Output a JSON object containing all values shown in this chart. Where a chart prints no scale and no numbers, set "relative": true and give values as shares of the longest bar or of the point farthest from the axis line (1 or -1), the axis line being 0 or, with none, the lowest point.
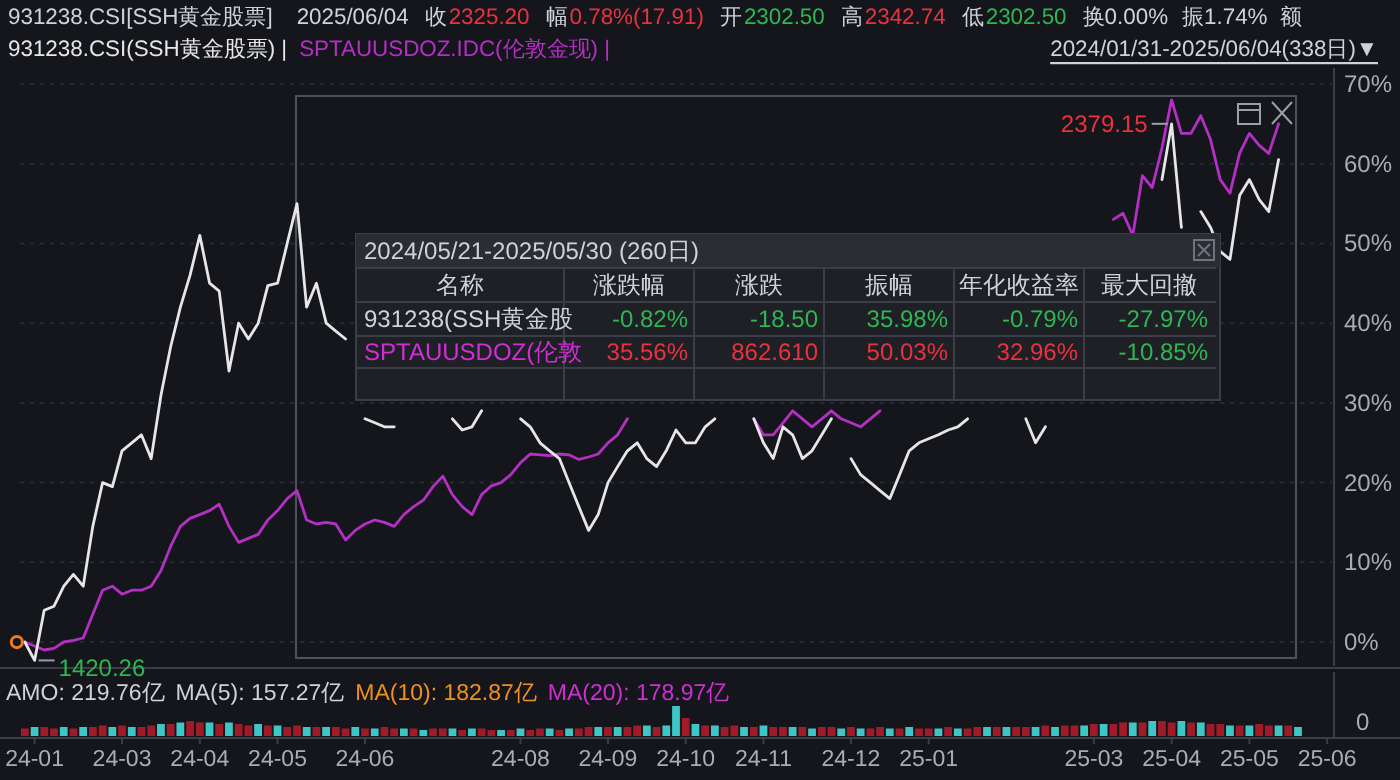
{
  "chart_data": [
    {
      "type": "line",
      "title": "931238.CSI[SSH黄金股票]",
      "legend": "top left",
      "grid": "y",
      "tick_labels": "y",
      "categories": [
        null,
        null,
        null,
        null,
        null,
        null,
        null,
        null,
        null,
        null,
        null,
        null,
        null,
        null,
        null,
        null,
        null,
        null,
        null,
        null,
        null,
        null,
        null,
        null,
        null,
        null,
        null,
        null,
        null,
        null,
        null,
        null,
        null,
        null,
        null,
        null,
        null,
        null,
        null,
        null,
        null,
        null,
        null,
        null,
        null,
        null,
        null,
        null,
        null,
        null,
        null,
        null,
        null,
        null,
        null,
        null,
        null,
        null,
        null,
        null,
        null,
        null,
        null,
        null,
        null,
        null,
        null,
        null,
        null,
        null,
        null,
        null,
        null,
        null,
        null,
        null,
        null,
        null,
        null,
        null,
        null,
        null,
        null,
        null,
        null,
        null,
        null,
        null,
        null,
        null,
        null,
        null,
        null,
        null,
        null,
        null,
        null,
        null,
        null,
        null,
        null,
        null,
        null,
        null,
        null,
        null,
        null,
        null,
        null,
        null,
        null,
        null,
        null,
        null,
        null,
        null,
        null,
        null,
        null,
        null,
        null,
        null,
        null,
        null,
        null,
        null,
        null,
        null,
        null,
        null,
        null,
        null,
        null,
        null,
        null
      ],
      "ylim": [
        -3,
        72
      ],
      "yticks": [
        {
          "value": 0,
          "label": "0%"
        },
        {
          "value": 10,
          "label": "10%"
        },
        {
          "value": 20,
          "label": "20%"
        },
        {
          "value": 30,
          "label": "30%"
        },
        {
          "value": 40,
          "label": "40%"
        },
        {
          "value": 50,
          "label": "50%"
        },
        {
          "value": 60,
          "label": "60%"
        },
        {
          "value": 70,
          "label": "70%"
        }
      ],
      "series": [
        {
          "name": "931238.CSI(SSH黄金股票) |",
          "color": "#e6e6e6",
          "values": [
            0,
            -2.3,
            4,
            4.5,
            7,
            8.5,
            7,
            14.5,
            20,
            19.5,
            24,
            25,
            26,
            23,
            31,
            37,
            42,
            46,
            51,
            45,
            44,
            34,
            40,
            38,
            40,
            44.7,
            45,
            50,
            55,
            42,
            45,
            40,
            39,
            38,
            null,
            28,
            27.5,
            27,
            27,
            null,
            null,
            null,
            null,
            null,
            28,
            26.6,
            27,
            29,
            null,
            null,
            null,
            28,
            27,
            25,
            24,
            23,
            20,
            17,
            14,
            16,
            20,
            22,
            24,
            25,
            23,
            22,
            24,
            26.6,
            25,
            25,
            27,
            28,
            null,
            null,
            null,
            28,
            25,
            23,
            27,
            26,
            23,
            24,
            26,
            28,
            null,
            23,
            21,
            20,
            19,
            18,
            21,
            24,
            25,
            25.5,
            26,
            26.6,
            27,
            28,
            null,
            null,
            null,
            null,
            null,
            28,
            25,
            27,
            null,
            null,
            null,
            null,
            null,
            null,
            null,
            null,
            null,
            null,
            null,
            58,
            65,
            52,
            null,
            54,
            52,
            49,
            48,
            56,
            58,
            55.5,
            54,
            60.5,
            null,
            null,
            null,
            null,
            null
          ]
        },
        {
          "name": "SPTAUUSDOZ.IDC(伦敦金现) |",
          "color": "#b42fc4",
          "values": [
            0,
            -0.5,
            -1,
            -0.8,
            0,
            0.2,
            0.5,
            3.5,
            6.5,
            7,
            6,
            6.5,
            6.5,
            7,
            9,
            12,
            14.5,
            15.5,
            16,
            16.5,
            17.3,
            14.5,
            12.5,
            13,
            13.5,
            15.3,
            16.5,
            18,
            19,
            15.3,
            14.8,
            15,
            14.8,
            12.8,
            14,
            14.8,
            15.3,
            15,
            14.5,
            16,
            17,
            17.8,
            19.5,
            20.8,
            18.5,
            17,
            16,
            18.5,
            19.6,
            20,
            21,
            22.5,
            23.6,
            23.5,
            23.4,
            23.6,
            23.5,
            22.9,
            23.2,
            23.6,
            25,
            26,
            28,
            null,
            null,
            null,
            null,
            null,
            null,
            null,
            null,
            null,
            null,
            null,
            null,
            28,
            26,
            26,
            27.5,
            29,
            28,
            27,
            28,
            29,
            28,
            27.5,
            27,
            28,
            29,
            null,
            null,
            null,
            null,
            null,
            null,
            null,
            null,
            null,
            null,
            null,
            null,
            null,
            null,
            null,
            null,
            null,
            null,
            null,
            null,
            null,
            null,
            null,
            53,
            53.8,
            51,
            58.5,
            57,
            62,
            68,
            63.8,
            63.8,
            66,
            63,
            58,
            56.3,
            61.3,
            63.8,
            62.3,
            61.3,
            65,
            null,
            null,
            null,
            null,
            null
          ]
        }
      ],
      "annotations": [
        "2025/06/04",
        "收",
        "2325.20",
        "幅",
        "0.78%(17.91)",
        "开",
        "2302.50",
        "高",
        "2342.74",
        "低",
        "2302.50",
        "换0.00%",
        "振1.74%",
        "额",
        "2024/01/31-2025/06/04(338日)▼",
        "2024/05/21-2025/05/30 (260日)",
        "名称",
        "涨跌幅",
        "涨跌",
        "振幅",
        "年化收益率",
        "最大回撤",
        "931238(SSH黄金股",
        "-0.82%",
        "-18.50",
        "35.98%",
        "-0.79%",
        "-27.97%",
        "SPTAUUSDOZ(伦敦",
        "35.56%",
        "862.610",
        "50.03%",
        "32.96%",
        "-10.85%",
        "1420.26",
        "2379.15"
      ]
    },
    {
      "type": "bar",
      "relative": true,
      "tick_labels": "x",
      "categories": [
        null,
        "24-01",
        null,
        null,
        null,
        null,
        null,
        null,
        null,
        null,
        "24-03",
        null,
        null,
        null,
        null,
        null,
        null,
        null,
        "24-04",
        null,
        null,
        null,
        null,
        null,
        null,
        null,
        "24-05",
        null,
        null,
        null,
        null,
        null,
        null,
        null,
        null,
        "24-06",
        null,
        null,
        null,
        null,
        null,
        null,
        null,
        null,
        null,
        null,
        null,
        null,
        null,
        null,
        null,
        "24-08",
        null,
        null,
        null,
        null,
        null,
        null,
        null,
        null,
        "24-09",
        null,
        null,
        null,
        null,
        null,
        null,
        null,
        "24-10",
        null,
        null,
        null,
        null,
        null,
        null,
        null,
        "24-11",
        null,
        null,
        null,
        null,
        null,
        null,
        null,
        null,
        "24-12",
        null,
        null,
        null,
        null,
        null,
        null,
        null,
        "25-01",
        null,
        null,
        null,
        null,
        null,
        null,
        null,
        null,
        null,
        null,
        null,
        null,
        null,
        null,
        null,
        null,
        "25-03",
        null,
        null,
        null,
        null,
        null,
        null,
        null,
        "25-04",
        null,
        null,
        null,
        null,
        null,
        null,
        null,
        "25-05",
        null,
        null,
        null,
        null,
        null,
        null,
        null,
        "25-06"
      ],
      "values": [
        0.25,
        0.3,
        0.3,
        0.25,
        0.3,
        0.25,
        0.3,
        0.3,
        0.35,
        0.3,
        0.35,
        0.3,
        0.3,
        0.35,
        0.4,
        0.4,
        0.45,
        0.5,
        0.45,
        0.45,
        0.4,
        0.45,
        0.4,
        0.35,
        0.4,
        0.35,
        0.35,
        0.3,
        0.35,
        0.3,
        0.3,
        0.3,
        0.3,
        0.25,
        0.3,
        0.25,
        0.25,
        0.3,
        0.25,
        0.25,
        0.25,
        0.2,
        0.25,
        0.25,
        0.25,
        0.2,
        0.25,
        0.25,
        0.2,
        0.2,
        0.2,
        0.25,
        0.2,
        0.25,
        0.25,
        0.2,
        0.25,
        0.25,
        0.3,
        0.3,
        0.3,
        0.3,
        0.3,
        0.35,
        0.35,
        0.3,
        0.35,
        1,
        0.6,
        0.4,
        0.35,
        0.35,
        0.3,
        0.35,
        0.3,
        0.3,
        0.35,
        0.3,
        0.3,
        0.3,
        0.3,
        0.25,
        0.3,
        0.3,
        0.25,
        0.3,
        0.25,
        0.25,
        0.3,
        0.25,
        0.25,
        0.3,
        0.25,
        0.25,
        0.25,
        0.3,
        0.25,
        0.25,
        0.3,
        0.3,
        0.3,
        0.3,
        0.3,
        0.3,
        0.3,
        0.35,
        0.3,
        0.35,
        0.35,
        0.35,
        0.4,
        0.4,
        0.4,
        0.45,
        0.45,
        0.45,
        0.5,
        0.5,
        0.45,
        0.5,
        0.45,
        0.45,
        0.4,
        0.4,
        0.35,
        0.35,
        0.35,
        0.4,
        0.35,
        0.35,
        0.35,
        0.3,
        null,
        null,
        null
      ],
      "colors": [
        "#a01a28",
        "#3ec6c6",
        "#a01a28",
        "#a01a28",
        "#3ec6c6",
        "#a01a28",
        "#3ec6c6",
        "#a01a28",
        "#a01a28",
        "#3ec6c6",
        "#a01a28",
        "#3ec6c6",
        "#a01a28",
        "#a01a28",
        "#3ec6c6",
        "#a01a28",
        "#3ec6c6",
        "#a01a28",
        "#a01a28",
        "#3ec6c6",
        "#a01a28",
        "#3ec6c6",
        "#a01a28",
        "#a01a28",
        "#3ec6c6",
        "#a01a28",
        "#3ec6c6",
        "#a01a28",
        "#a01a28",
        "#3ec6c6",
        "#a01a28",
        "#3ec6c6",
        "#a01a28",
        "#a01a28",
        "#3ec6c6",
        "#a01a28",
        "#3ec6c6",
        "#a01a28",
        "#a01a28",
        "#3ec6c6",
        "#a01a28",
        "#3ec6c6",
        "#a01a28",
        "#a01a28",
        "#3ec6c6",
        "#a01a28",
        "#3ec6c6",
        "#a01a28",
        "#a01a28",
        "#3ec6c6",
        "#a01a28",
        "#3ec6c6",
        "#a01a28",
        "#a01a28",
        "#3ec6c6",
        "#a01a28",
        "#3ec6c6",
        "#a01a28",
        "#a01a28",
        "#3ec6c6",
        "#a01a28",
        "#3ec6c6",
        "#a01a28",
        "#a01a28",
        "#3ec6c6",
        "#a01a28",
        "#3ec6c6",
        "#3ec6c6",
        "#a01a28",
        "#3ec6c6",
        "#a01a28",
        "#3ec6c6",
        "#a01a28",
        "#a01a28",
        "#3ec6c6",
        "#a01a28",
        "#3ec6c6",
        "#a01a28",
        "#a01a28",
        "#3ec6c6",
        "#a01a28",
        "#3ec6c6",
        "#a01a28",
        "#a01a28",
        "#3ec6c6",
        "#a01a28",
        "#3ec6c6",
        "#a01a28",
        "#a01a28",
        "#3ec6c6",
        "#a01a28",
        "#3ec6c6",
        "#a01a28",
        "#a01a28",
        "#3ec6c6",
        "#a01a28",
        "#3ec6c6",
        "#a01a28",
        "#a01a28",
        "#3ec6c6",
        "#a01a28",
        "#3ec6c6",
        "#a01a28",
        "#a01a28",
        "#3ec6c6",
        "#a01a28",
        "#3ec6c6",
        "#a01a28",
        "#a01a28",
        "#3ec6c6",
        "#a01a28",
        "#3ec6c6",
        "#a01a28",
        "#a01a28",
        "#3ec6c6",
        "#a01a28",
        "#3ec6c6",
        "#a01a28",
        "#a01a28",
        "#3ec6c6",
        "#a01a28",
        "#3ec6c6",
        "#a01a28",
        "#a01a28",
        "#3ec6c6",
        "#a01a28",
        "#3ec6c6",
        "#a01a28",
        "#a01a28",
        "#3ec6c6",
        "#a01a28",
        "#3ec6c6",
        "#a01a28",
        "#a01a28",
        "#a01a28"
      ],
      "annotations": [
        "AMO: 219.76亿",
        "MA(5): 157.27亿",
        "MA(10): 182.87亿",
        "MA(20): 178.97亿",
        "0"
      ]
    }
  ]
}
